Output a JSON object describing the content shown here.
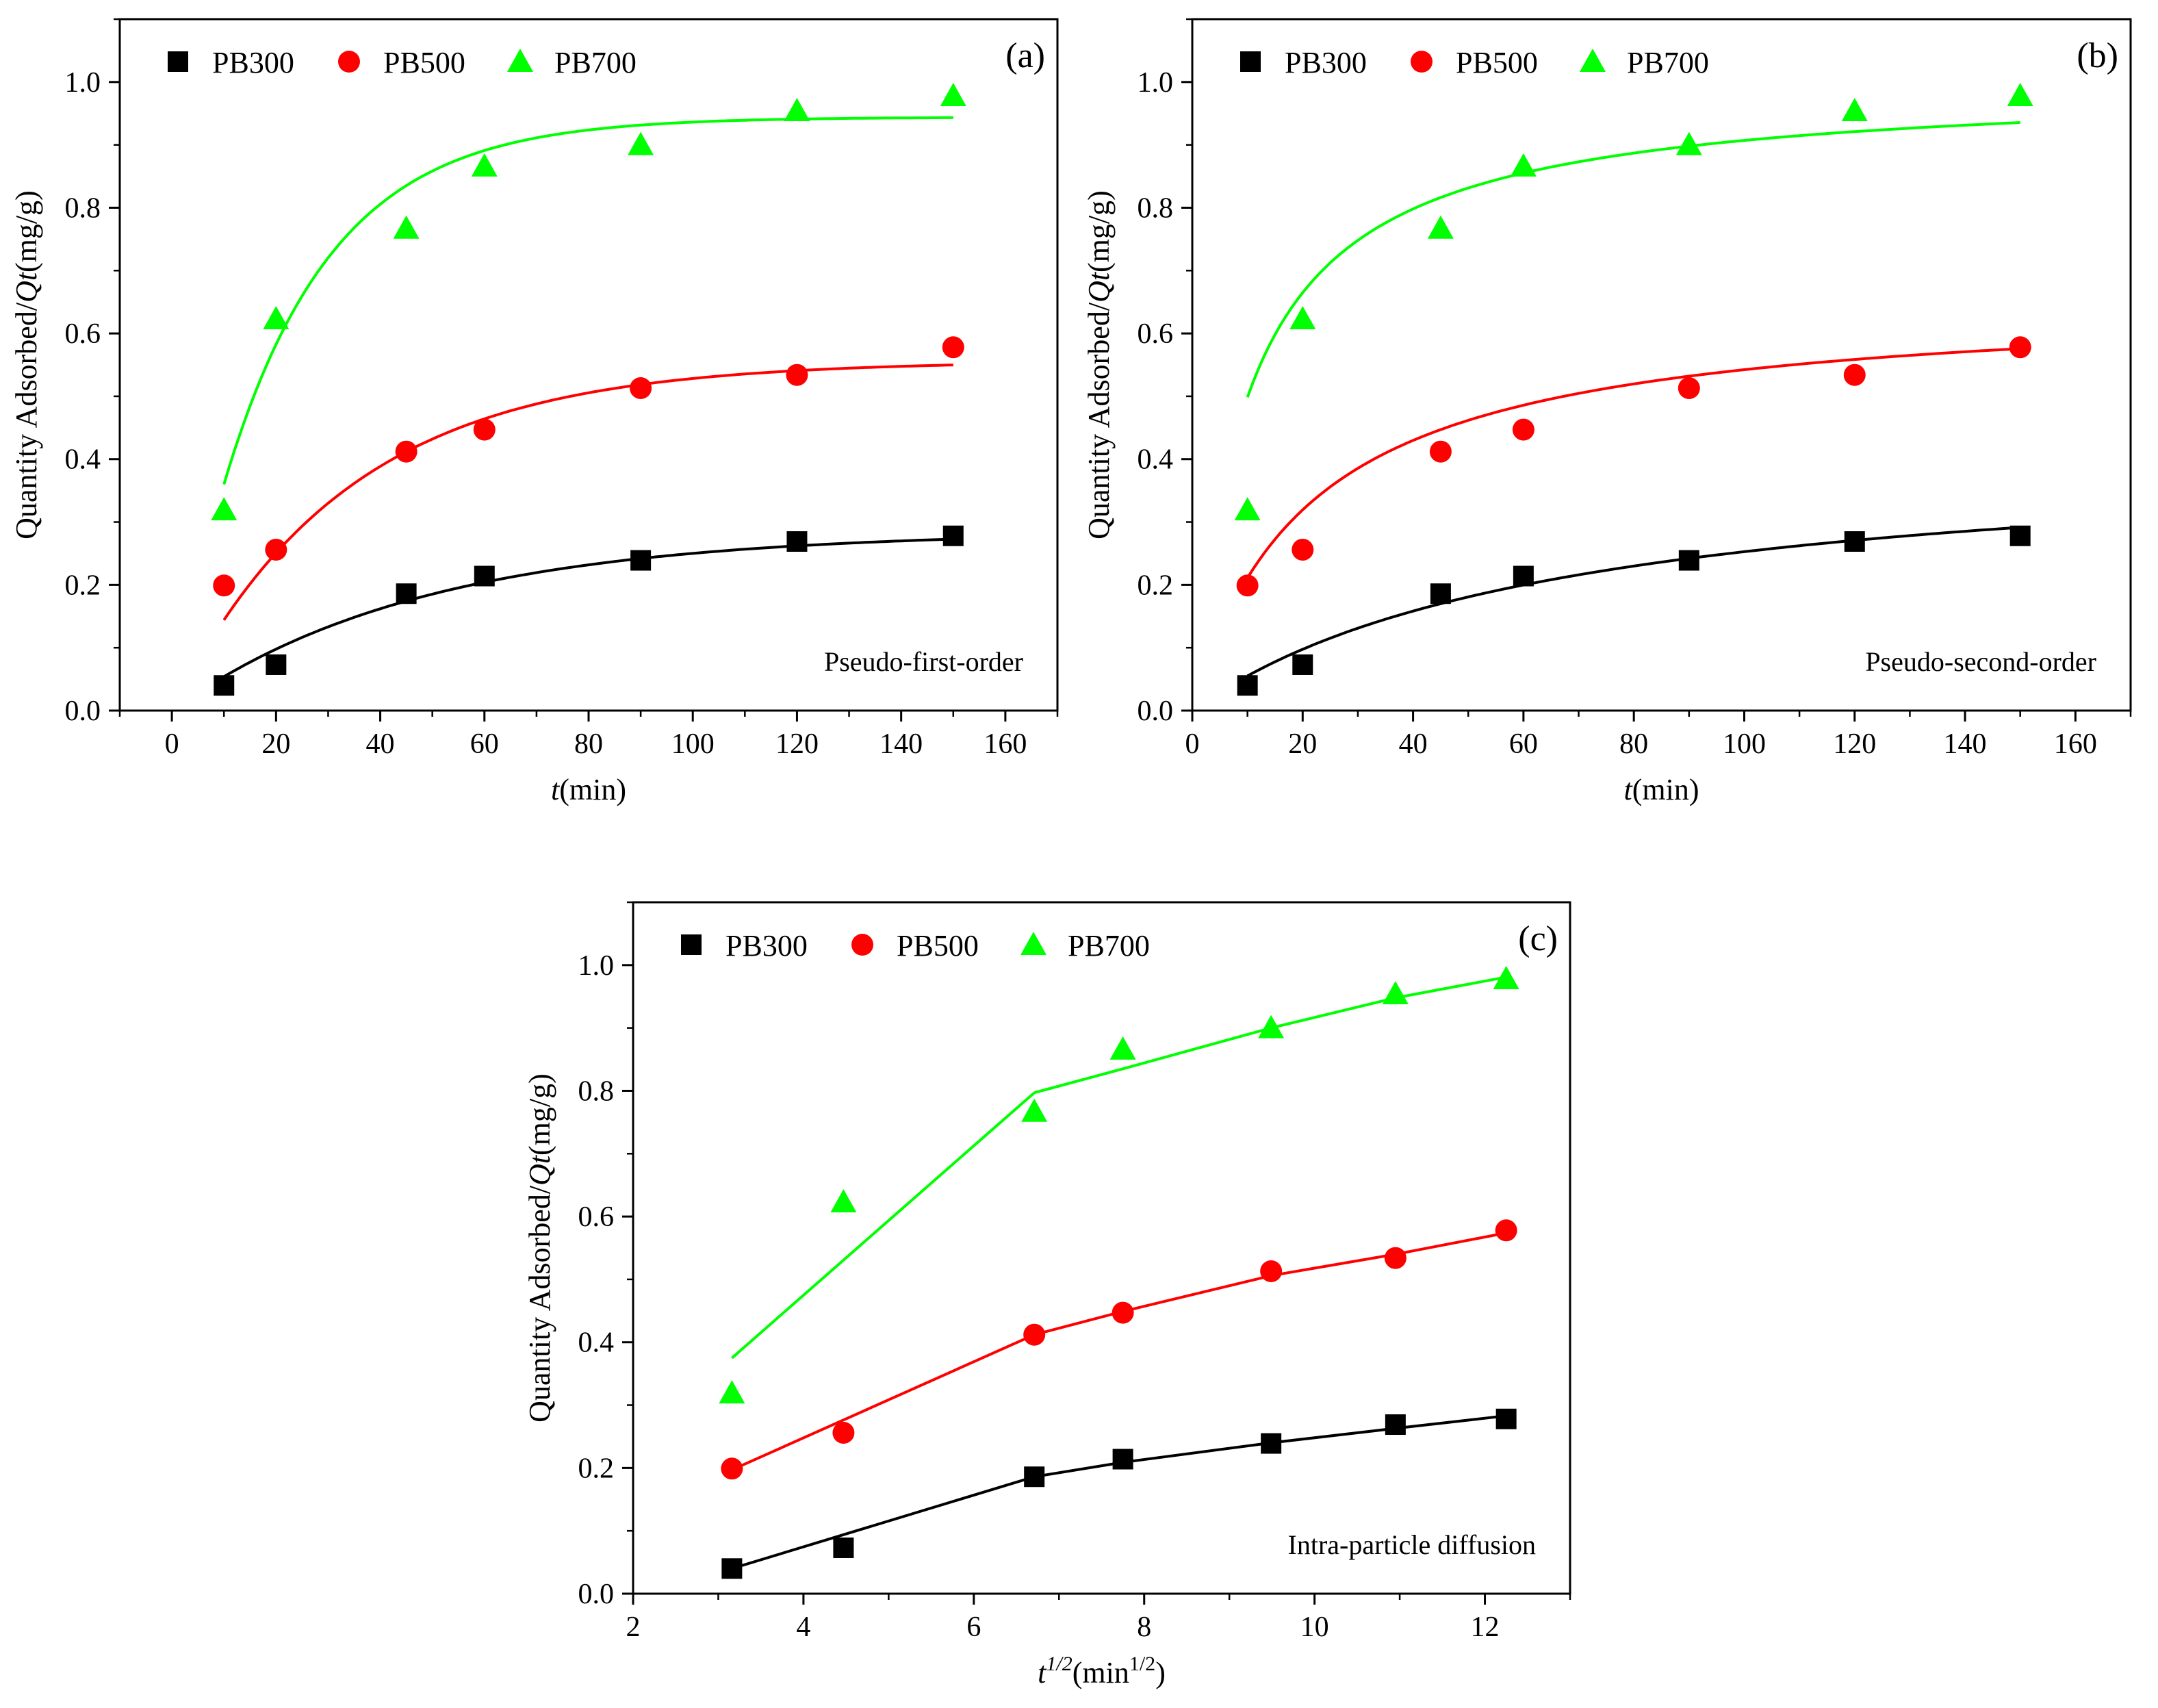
{
  "colors": {
    "PB300": "#000000",
    "PB500": "#ff0000",
    "PB700": "#00ff00"
  },
  "markers": {
    "PB300": "square",
    "PB500": "circle",
    "PB700": "triangle"
  },
  "chart_data": [
    {
      "id": "a",
      "type": "scatter",
      "panel_label": "(a)",
      "annotation": "Pseudo-first-order",
      "xlabel_main": "t",
      "xlabel_unit": "(min)",
      "ylabel_main": "Quantity Adsorbed/",
      "ylabel_var": "Qt",
      "ylabel_unit": "(mg/g)",
      "xlim": [
        -10,
        170
      ],
      "ylim": [
        0,
        1.1
      ],
      "xticks": [
        0,
        20,
        40,
        60,
        80,
        100,
        120,
        140,
        160
      ],
      "yticks": [
        0.0,
        0.2,
        0.4,
        0.6,
        0.8,
        1.0
      ],
      "xtick_labels": [
        "0",
        "20",
        "40",
        "60",
        "80",
        "100",
        "120",
        "140",
        "160"
      ],
      "ytick_labels": [
        "0.0",
        "0.2",
        "0.4",
        "0.6",
        "0.8",
        "1.0"
      ],
      "legend": [
        "PB300",
        "PB500",
        "PB700"
      ],
      "legend_position": "top-left",
      "x": [
        10,
        20,
        45,
        60,
        90,
        120,
        150
      ],
      "series": [
        {
          "name": "PB300",
          "values": [
            0.04,
            0.073,
            0.186,
            0.214,
            0.239,
            0.269,
            0.278
          ],
          "fit": {
            "model": "pseudo-first-order",
            "qe": 0.285,
            "k": 0.021,
            "x_range": [
              10,
              150
            ]
          }
        },
        {
          "name": "PB500",
          "values": [
            0.199,
            0.256,
            0.412,
            0.447,
            0.513,
            0.534,
            0.578
          ],
          "fit": {
            "model": "pseudo-first-order",
            "qe": 0.556,
            "k": 0.03,
            "x_range": [
              10,
              150
            ]
          }
        },
        {
          "name": "PB700",
          "values": [
            0.319,
            0.623,
            0.767,
            0.866,
            0.9,
            0.954,
            0.978
          ],
          "fit": {
            "model": "pseudo-first-order",
            "qe": 0.944,
            "k": 0.048,
            "x_range": [
              10,
              150
            ]
          }
        }
      ]
    },
    {
      "id": "b",
      "type": "scatter",
      "panel_label": "(b)",
      "annotation": "Pseudo-second-order",
      "xlabel_main": "t",
      "xlabel_unit": "(min)",
      "ylabel_main": "Quantity Adsorbed/",
      "ylabel_var": "Qt",
      "ylabel_unit": "(mg/g)",
      "xlim": [
        0,
        170
      ],
      "ylim": [
        0,
        1.1
      ],
      "xticks": [
        0,
        20,
        40,
        60,
        80,
        100,
        120,
        140,
        160
      ],
      "yticks": [
        0.0,
        0.2,
        0.4,
        0.6,
        0.8,
        1.0
      ],
      "xtick_labels": [
        "0",
        "20",
        "40",
        "60",
        "80",
        "100",
        "120",
        "140",
        "160"
      ],
      "ytick_labels": [
        "0.0",
        "0.2",
        "0.4",
        "0.6",
        "0.8",
        "1.0"
      ],
      "legend": [
        "PB300",
        "PB500",
        "PB700"
      ],
      "legend_position": "top-left",
      "x": [
        10,
        20,
        45,
        60,
        90,
        120,
        150
      ],
      "series": [
        {
          "name": "PB300",
          "values": [
            0.04,
            0.073,
            0.186,
            0.214,
            0.239,
            0.269,
            0.278
          ],
          "fit": {
            "model": "pseudo-second-order",
            "qe": 0.42,
            "k": 0.036,
            "x_range": [
              10,
              150
            ]
          }
        },
        {
          "name": "PB500",
          "values": [
            0.199,
            0.256,
            0.412,
            0.447,
            0.513,
            0.534,
            0.578
          ],
          "fit": {
            "model": "pseudo-second-order",
            "qe": 0.657,
            "k": 0.072,
            "x_range": [
              10,
              150
            ]
          }
        },
        {
          "name": "PB700",
          "values": [
            0.319,
            0.623,
            0.767,
            0.866,
            0.9,
            0.954,
            0.978
          ],
          "fit": {
            "model": "pseudo-second-order",
            "qe": 0.998,
            "k": 0.1,
            "x_range": [
              10,
              150
            ]
          }
        }
      ]
    },
    {
      "id": "c",
      "type": "scatter",
      "panel_label": "(c)",
      "annotation": "Intra-particle diffusion",
      "xlabel_main": "t",
      "xlabel_sup": "1/2",
      "xlabel_unit": "(min",
      "xlabel_unit_sup": "1/2",
      "xlabel_close": ")",
      "ylabel_main": "Quantity Adsorbed/",
      "ylabel_var": "Qt",
      "ylabel_unit": "(mg/g)",
      "xlim": [
        2,
        13
      ],
      "ylim": [
        0,
        1.1
      ],
      "xticks": [
        2,
        4,
        6,
        8,
        10,
        12
      ],
      "yticks": [
        0.0,
        0.2,
        0.4,
        0.6,
        0.8,
        1.0
      ],
      "xtick_labels": [
        "2",
        "4",
        "6",
        "8",
        "10",
        "12"
      ],
      "ytick_labels": [
        "0.0",
        "0.2",
        "0.4",
        "0.6",
        "0.8",
        "1.0"
      ],
      "legend": [
        "PB300",
        "PB500",
        "PB700"
      ],
      "legend_position": "top-left",
      "x": [
        3.16,
        4.47,
        6.71,
        7.75,
        9.49,
        10.95,
        12.25
      ],
      "series": [
        {
          "name": "PB300",
          "values": [
            0.04,
            0.073,
            0.186,
            0.214,
            0.239,
            0.269,
            0.278
          ],
          "fit_lines": [
            [
              [
                3.16,
                0.04
              ],
              [
                6.71,
                0.186
              ]
            ],
            [
              [
                6.71,
                0.186
              ],
              [
                7.75,
                0.209
              ],
              [
                9.49,
                0.24
              ],
              [
                10.95,
                0.263
              ],
              [
                12.25,
                0.283
              ]
            ]
          ]
        },
        {
          "name": "PB500",
          "values": [
            0.199,
            0.256,
            0.412,
            0.447,
            0.513,
            0.534,
            0.578
          ],
          "fit_lines": [
            [
              [
                3.16,
                0.197
              ],
              [
                6.71,
                0.412
              ]
            ],
            [
              [
                6.71,
                0.412
              ],
              [
                7.75,
                0.449
              ],
              [
                9.49,
                0.506
              ],
              [
                10.95,
                0.54
              ],
              [
                12.25,
                0.574
              ]
            ]
          ]
        },
        {
          "name": "PB700",
          "values": [
            0.319,
            0.623,
            0.767,
            0.866,
            0.9,
            0.954,
            0.978
          ],
          "fit_lines": [
            [
              [
                3.16,
                0.375
              ],
              [
                6.71,
                0.797
              ]
            ],
            [
              [
                6.71,
                0.797
              ],
              [
                7.75,
                0.835
              ],
              [
                9.49,
                0.9
              ],
              [
                10.95,
                0.948
              ],
              [
                12.25,
                0.981
              ]
            ]
          ]
        }
      ]
    }
  ]
}
